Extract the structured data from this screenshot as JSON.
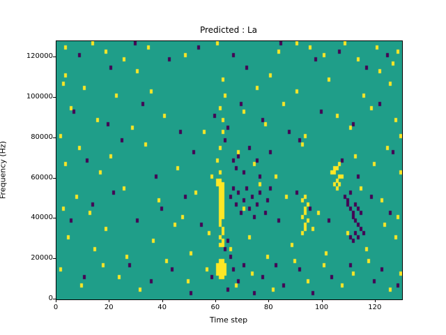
{
  "figure": {
    "title": "Predicted : La",
    "xlabel": "Time step",
    "ylabel": "Frequency (Hz)"
  },
  "chart_data": {
    "type": "heatmap",
    "title": "Predicted : La",
    "xlabel": "Time step",
    "ylabel": "Frequency (Hz)",
    "xlim": [
      0,
      130
    ],
    "ylim": [
      0,
      128000
    ],
    "x_ticks": [
      0,
      20,
      40,
      60,
      80,
      100,
      120
    ],
    "y_ticks": [
      0,
      20000,
      40000,
      60000,
      80000,
      100000,
      120000
    ],
    "grid": false,
    "legend": "none",
    "grid_size": {
      "cols": 130,
      "rows": 64
    },
    "bin_height_hz": 2000,
    "colors": {
      "background": "#1f9e89",
      "high": "#fde725",
      "low": "#440154"
    },
    "cells_high": [
      [
        3,
        62
      ],
      [
        13,
        63
      ],
      [
        18,
        61
      ],
      [
        25,
        59
      ],
      [
        34,
        62
      ],
      [
        48,
        60
      ],
      [
        60,
        63
      ],
      [
        83,
        61
      ],
      [
        90,
        63
      ],
      [
        95,
        62
      ],
      [
        100,
        60
      ],
      [
        108,
        63
      ],
      [
        113,
        59
      ],
      [
        120,
        62
      ],
      [
        126,
        58
      ],
      [
        128,
        61
      ],
      [
        2,
        53
      ],
      [
        3,
        55
      ],
      [
        10,
        52
      ],
      [
        22,
        50
      ],
      [
        30,
        56
      ],
      [
        35,
        51
      ],
      [
        62,
        54
      ],
      [
        63,
        50
      ],
      [
        75,
        52
      ],
      [
        80,
        55
      ],
      [
        90,
        51
      ],
      [
        102,
        54
      ],
      [
        115,
        50
      ],
      [
        121,
        56
      ],
      [
        125,
        53
      ],
      [
        1,
        40
      ],
      [
        5,
        47
      ],
      [
        15,
        44
      ],
      [
        28,
        42
      ],
      [
        40,
        45
      ],
      [
        55,
        41
      ],
      [
        61,
        47
      ],
      [
        62,
        44
      ],
      [
        62,
        41
      ],
      [
        70,
        46
      ],
      [
        78,
        43
      ],
      [
        85,
        48
      ],
      [
        93,
        40
      ],
      [
        105,
        45
      ],
      [
        110,
        42
      ],
      [
        118,
        47
      ],
      [
        127,
        44
      ],
      [
        129,
        40
      ],
      [
        3,
        33
      ],
      [
        8,
        37
      ],
      [
        16,
        31
      ],
      [
        20,
        35
      ],
      [
        33,
        38
      ],
      [
        45,
        32
      ],
      [
        58,
        30
      ],
      [
        60,
        34
      ],
      [
        61,
        37
      ],
      [
        61,
        31
      ],
      [
        68,
        36
      ],
      [
        74,
        33
      ],
      [
        82,
        30
      ],
      [
        92,
        38
      ],
      [
        103,
        31
      ],
      [
        104,
        32
      ],
      [
        106,
        30
      ],
      [
        112,
        35
      ],
      [
        119,
        33
      ],
      [
        124,
        37
      ],
      [
        129,
        31
      ],
      [
        60,
        29
      ],
      [
        60,
        28
      ],
      [
        61,
        29
      ],
      [
        61,
        28
      ],
      [
        61,
        27
      ],
      [
        61,
        26
      ],
      [
        62,
        28
      ],
      [
        62,
        27
      ],
      [
        62,
        26
      ],
      [
        62,
        25
      ],
      [
        61,
        25
      ],
      [
        61,
        24
      ],
      [
        62,
        24
      ],
      [
        61,
        23
      ],
      [
        62,
        23
      ],
      [
        61,
        22
      ],
      [
        62,
        22
      ],
      [
        61,
        21
      ],
      [
        62,
        21
      ],
      [
        61,
        20
      ],
      [
        62,
        20
      ],
      [
        92,
        20
      ],
      [
        93,
        21
      ],
      [
        93,
        22
      ],
      [
        94,
        23
      ],
      [
        92,
        16
      ],
      [
        93,
        17
      ],
      [
        93,
        18
      ],
      [
        94,
        19
      ],
      [
        92,
        24
      ],
      [
        93,
        25
      ],
      [
        104,
        28
      ],
      [
        105,
        29
      ],
      [
        105,
        27
      ],
      [
        106,
        28
      ],
      [
        104,
        31
      ],
      [
        105,
        32
      ],
      [
        106,
        33
      ],
      [
        107,
        30
      ],
      [
        2,
        22
      ],
      [
        7,
        25
      ],
      [
        12,
        21
      ],
      [
        25,
        27
      ],
      [
        38,
        24
      ],
      [
        47,
        20
      ],
      [
        52,
        26
      ],
      [
        70,
        22
      ],
      [
        76,
        28
      ],
      [
        86,
        25
      ],
      [
        98,
        21
      ],
      [
        114,
        27
      ],
      [
        122,
        24
      ],
      [
        128,
        20
      ],
      [
        4,
        15
      ],
      [
        14,
        12
      ],
      [
        18,
        17
      ],
      [
        26,
        10
      ],
      [
        36,
        14
      ],
      [
        44,
        18
      ],
      [
        50,
        11
      ],
      [
        57,
        16
      ],
      [
        61,
        19
      ],
      [
        61,
        18
      ],
      [
        62,
        17
      ],
      [
        62,
        16
      ],
      [
        61,
        15
      ],
      [
        62,
        14
      ],
      [
        61,
        13
      ],
      [
        62,
        13
      ],
      [
        65,
        12
      ],
      [
        72,
        15
      ],
      [
        79,
        10
      ],
      [
        88,
        13
      ],
      [
        96,
        17
      ],
      [
        101,
        11
      ],
      [
        109,
        16
      ],
      [
        116,
        12
      ],
      [
        123,
        18
      ],
      [
        127,
        15
      ],
      [
        1,
        7
      ],
      [
        9,
        3
      ],
      [
        17,
        8
      ],
      [
        23,
        5
      ],
      [
        31,
        2
      ],
      [
        41,
        9
      ],
      [
        49,
        4
      ],
      [
        56,
        7
      ],
      [
        60,
        8
      ],
      [
        60,
        7
      ],
      [
        60,
        6
      ],
      [
        61,
        9
      ],
      [
        61,
        8
      ],
      [
        61,
        7
      ],
      [
        61,
        6
      ],
      [
        61,
        5
      ],
      [
        62,
        9
      ],
      [
        62,
        8
      ],
      [
        62,
        7
      ],
      [
        62,
        6
      ],
      [
        62,
        5
      ],
      [
        63,
        8
      ],
      [
        63,
        7
      ],
      [
        63,
        6
      ],
      [
        67,
        3
      ],
      [
        73,
        6
      ],
      [
        81,
        2
      ],
      [
        89,
        9
      ],
      [
        94,
        4
      ],
      [
        100,
        8
      ],
      [
        107,
        3
      ],
      [
        111,
        6
      ],
      [
        117,
        9
      ],
      [
        125,
        2
      ],
      [
        129,
        6
      ]
    ],
    "cells_low": [
      [
        8,
        60
      ],
      [
        20,
        57
      ],
      [
        29,
        63
      ],
      [
        42,
        59
      ],
      [
        53,
        62
      ],
      [
        66,
        60
      ],
      [
        71,
        57
      ],
      [
        84,
        63
      ],
      [
        97,
        59
      ],
      [
        106,
        61
      ],
      [
        116,
        57
      ],
      [
        124,
        60
      ],
      [
        6,
        46
      ],
      [
        19,
        43
      ],
      [
        32,
        48
      ],
      [
        46,
        41
      ],
      [
        59,
        45
      ],
      [
        64,
        42
      ],
      [
        69,
        48
      ],
      [
        77,
        44
      ],
      [
        87,
        41
      ],
      [
        99,
        46
      ],
      [
        111,
        43
      ],
      [
        121,
        48
      ],
      [
        11,
        34
      ],
      [
        24,
        39
      ],
      [
        37,
        30
      ],
      [
        51,
        36
      ],
      [
        63,
        39
      ],
      [
        66,
        34
      ],
      [
        67,
        32
      ],
      [
        68,
        35
      ],
      [
        70,
        31
      ],
      [
        72,
        37
      ],
      [
        75,
        34
      ],
      [
        76,
        30
      ],
      [
        80,
        36
      ],
      [
        91,
        39
      ],
      [
        107,
        34
      ],
      [
        113,
        30
      ],
      [
        126,
        36
      ],
      [
        65,
        25
      ],
      [
        66,
        27
      ],
      [
        67,
        23
      ],
      [
        68,
        26
      ],
      [
        69,
        21
      ],
      [
        70,
        24
      ],
      [
        71,
        27
      ],
      [
        72,
        22
      ],
      [
        73,
        25
      ],
      [
        74,
        20
      ],
      [
        75,
        23
      ],
      [
        76,
        26
      ],
      [
        78,
        21
      ],
      [
        79,
        24
      ],
      [
        80,
        27
      ],
      [
        108,
        25
      ],
      [
        109,
        24
      ],
      [
        109,
        23
      ],
      [
        110,
        22
      ],
      [
        110,
        26
      ],
      [
        111,
        21
      ],
      [
        111,
        20
      ],
      [
        112,
        19
      ],
      [
        112,
        23
      ],
      [
        113,
        18
      ],
      [
        113,
        22
      ],
      [
        114,
        17
      ],
      [
        114,
        21
      ],
      [
        115,
        16
      ],
      [
        110,
        15
      ],
      [
        111,
        14
      ],
      [
        112,
        16
      ],
      [
        113,
        15
      ],
      [
        5,
        19
      ],
      [
        13,
        23
      ],
      [
        21,
        26
      ],
      [
        30,
        19
      ],
      [
        39,
        22
      ],
      [
        48,
        25
      ],
      [
        54,
        18
      ],
      [
        83,
        19
      ],
      [
        90,
        26
      ],
      [
        95,
        22
      ],
      [
        102,
        19
      ],
      [
        118,
        25
      ],
      [
        125,
        21
      ],
      [
        63,
        12
      ],
      [
        64,
        14
      ],
      [
        65,
        10
      ],
      [
        10,
        5
      ],
      [
        27,
        8
      ],
      [
        35,
        4
      ],
      [
        43,
        7
      ],
      [
        50,
        1
      ],
      [
        58,
        5
      ],
      [
        64,
        2
      ],
      [
        66,
        7
      ],
      [
        68,
        4
      ],
      [
        70,
        8
      ],
      [
        74,
        1
      ],
      [
        77,
        5
      ],
      [
        82,
        8
      ],
      [
        85,
        3
      ],
      [
        91,
        7
      ],
      [
        96,
        1
      ],
      [
        103,
        5
      ],
      [
        110,
        8
      ],
      [
        119,
        4
      ],
      [
        122,
        7
      ],
      [
        128,
        3
      ]
    ]
  }
}
